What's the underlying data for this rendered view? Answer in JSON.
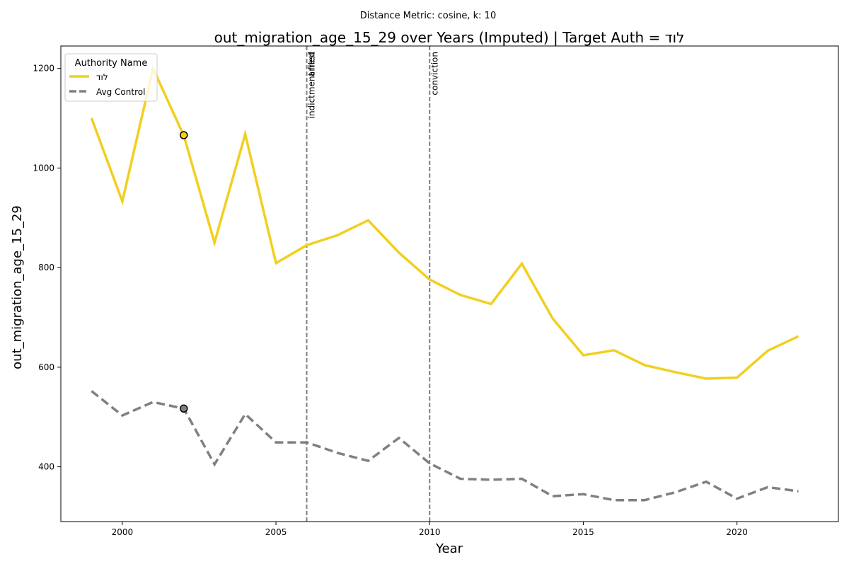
{
  "chart_data": {
    "type": "line",
    "suptitle": "Distance Metric: cosine, k: 10",
    "title": "out_migration_age_15_29 over Years (Imputed) | Target Auth = לוד",
    "xlabel": "Year",
    "ylabel": "out_migration_age_15_29",
    "xlim": [
      1998.0,
      2023.3
    ],
    "ylim": [
      290,
      1245
    ],
    "xticks": [
      2000,
      2005,
      2010,
      2015,
      2020
    ],
    "yticks": [
      400,
      600,
      800,
      1000,
      1200
    ],
    "grid": false,
    "legend": {
      "title": "Authority Name",
      "placement": "upper left"
    },
    "x": [
      1999,
      2000,
      2001,
      2002,
      2003,
      2004,
      2005,
      2006,
      2007,
      2008,
      2009,
      2010,
      2011,
      2012,
      2013,
      2014,
      2015,
      2016,
      2017,
      2018,
      2019,
      2020,
      2021,
      2022
    ],
    "series": [
      {
        "name": "לוד",
        "color": "#f2cf1f",
        "style": "solid",
        "values": [
          1100,
          933,
          1200,
          1065,
          850,
          1068,
          809,
          845,
          865,
          895,
          830,
          776,
          745,
          727,
          808,
          698,
          624,
          634,
          604,
          590,
          577,
          579,
          633,
          662
        ]
      },
      {
        "name": "Avg Control",
        "color": "#808080",
        "style": "dashed",
        "values": [
          552,
          503,
          530,
          517,
          405,
          506,
          449,
          449,
          428,
          412,
          458,
          407,
          376,
          374,
          376,
          341,
          345,
          333,
          333,
          349,
          370,
          336,
          359,
          351
        ]
      }
    ],
    "markers": [
      {
        "series": "לוד",
        "x": 2002,
        "y": 1066
      },
      {
        "series": "Avg Control",
        "x": 2002,
        "y": 517
      }
    ],
    "event_lines": [
      {
        "x": 2006,
        "labels": [
          "indictment filed",
          "arrest"
        ]
      },
      {
        "x": 2010,
        "labels": [
          "conviction"
        ]
      }
    ]
  }
}
